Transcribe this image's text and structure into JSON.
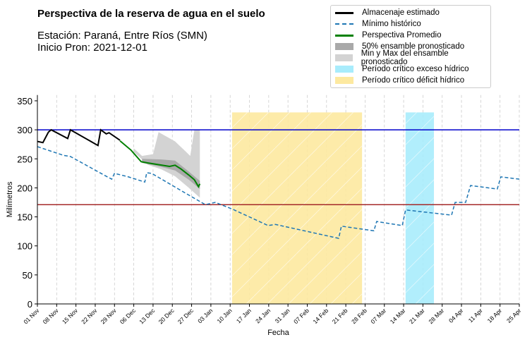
{
  "header": {
    "title": "Perspectiva de la reserva de agua en el suelo",
    "station": "Estación: Paraná, Entre Ríos (SMN)",
    "start": "Inicio Pron: 2021-12-01"
  },
  "chart_data": {
    "type": "line",
    "title": "Perspectiva de la reserva de agua en el suelo",
    "xlabel": "Fecha",
    "ylabel": "Milímetros",
    "x_unit": "days since 01 Nov 2021",
    "xlim": [
      0,
      175
    ],
    "ylim": [
      0,
      360
    ],
    "yticks": [
      0,
      50,
      100,
      150,
      200,
      250,
      300,
      350
    ],
    "xtick_labels": [
      "01 Nov",
      "08 Nov",
      "15 Nov",
      "22 Nov",
      "29 Nov",
      "06 Dec",
      "13 Dec",
      "20 Dec",
      "27 Dec",
      "03 Jan",
      "10 Jan",
      "17 Jan",
      "24 Jan",
      "31 Jan",
      "07 Feb",
      "14 Feb",
      "21 Feb",
      "28 Feb",
      "07 Mar",
      "14 Mar",
      "21 Mar",
      "28 Mar",
      "04 Apr",
      "11 Apr",
      "18 Apr",
      "25 Apr"
    ],
    "hlines": [
      {
        "y": 300,
        "color": "#0000cc"
      },
      {
        "y": 171,
        "color": "#a52a2a"
      }
    ],
    "regions": [
      {
        "name": "Período crítico déficit hídrico",
        "x": [
          70.7,
          117.9
        ],
        "top": 330,
        "color": "#fde9a0"
      },
      {
        "name": "Período crítico exceso hídrico",
        "x": [
          133.7,
          144
        ],
        "top": 330,
        "color": "#a8ecfc"
      }
    ],
    "series": [
      {
        "name": "Almacenaje estimado",
        "color": "#000000",
        "points": [
          [
            0,
            280
          ],
          [
            2,
            278
          ],
          [
            4,
            296
          ],
          [
            5,
            300
          ],
          [
            11,
            285
          ],
          [
            12,
            300
          ],
          [
            22,
            273
          ],
          [
            23,
            300
          ],
          [
            25,
            293
          ],
          [
            26,
            295
          ],
          [
            30,
            282
          ]
        ]
      },
      {
        "name": "Mínimo histórico",
        "color": "#1f77b4",
        "dashed": true,
        "points": [
          [
            0,
            271
          ],
          [
            9.5,
            256
          ],
          [
            12,
            254
          ],
          [
            25,
            220
          ],
          [
            27,
            215
          ],
          [
            28,
            225
          ],
          [
            33,
            219
          ],
          [
            39,
            210
          ],
          [
            39.7,
            226
          ],
          [
            41.5,
            225
          ],
          [
            53,
            193
          ],
          [
            61,
            171
          ],
          [
            64.6,
            175
          ],
          [
            71,
            163
          ],
          [
            83.8,
            135
          ],
          [
            86.4,
            137
          ],
          [
            109.4,
            113
          ],
          [
            110.4,
            134
          ],
          [
            122.2,
            126
          ],
          [
            123.2,
            142
          ],
          [
            132.5,
            135
          ],
          [
            133.7,
            162
          ],
          [
            150.4,
            153
          ],
          [
            151.7,
            175
          ],
          [
            155.5,
            175
          ],
          [
            157.3,
            204
          ],
          [
            167,
            198
          ],
          [
            168.3,
            219
          ],
          [
            175,
            215
          ]
        ]
      },
      {
        "name": "Perspectiva Promedio",
        "color": "#008000",
        "points": [
          [
            30,
            281
          ],
          [
            34,
            265
          ],
          [
            37.7,
            245
          ],
          [
            40,
            243
          ],
          [
            44,
            240
          ],
          [
            48,
            237
          ],
          [
            50,
            239
          ],
          [
            52,
            233
          ],
          [
            55,
            222
          ],
          [
            57,
            214
          ],
          [
            58.5,
            202
          ],
          [
            59,
            207
          ]
        ]
      }
    ],
    "bands": [
      {
        "name": "Min y Max del ensamble pronosticado",
        "color": "#d3d3d3",
        "upper": [
          [
            35,
            268
          ],
          [
            38,
            255
          ],
          [
            42,
            258
          ],
          [
            44,
            296
          ],
          [
            50,
            280
          ],
          [
            54,
            262
          ],
          [
            55.5,
            255
          ],
          [
            57,
            300
          ],
          [
            59,
            300
          ]
        ],
        "lower": [
          [
            35,
            262
          ],
          [
            40,
            240
          ],
          [
            45,
            232
          ],
          [
            50,
            220
          ],
          [
            55,
            200
          ],
          [
            59,
            183
          ]
        ]
      },
      {
        "name": "50% ensamble pronosticado",
        "color": "#a9a9a9",
        "upper": [
          [
            38,
            250
          ],
          [
            45,
            249
          ],
          [
            50,
            247
          ],
          [
            55,
            228
          ],
          [
            59,
            212
          ]
        ],
        "lower": [
          [
            38,
            243
          ],
          [
            45,
            236
          ],
          [
            50,
            230
          ],
          [
            55,
            214
          ],
          [
            59,
            198
          ]
        ]
      }
    ],
    "legend": {
      "placement": "top-right",
      "entries": [
        "Almacenaje estimado",
        "Mínimo histórico",
        "Perspectiva Promedio",
        "50% ensamble pronosticado",
        "Min y Max del ensamble pronosticado",
        "Período crítico exceso hídrico",
        "Período crítico déficit hídrico"
      ]
    }
  }
}
